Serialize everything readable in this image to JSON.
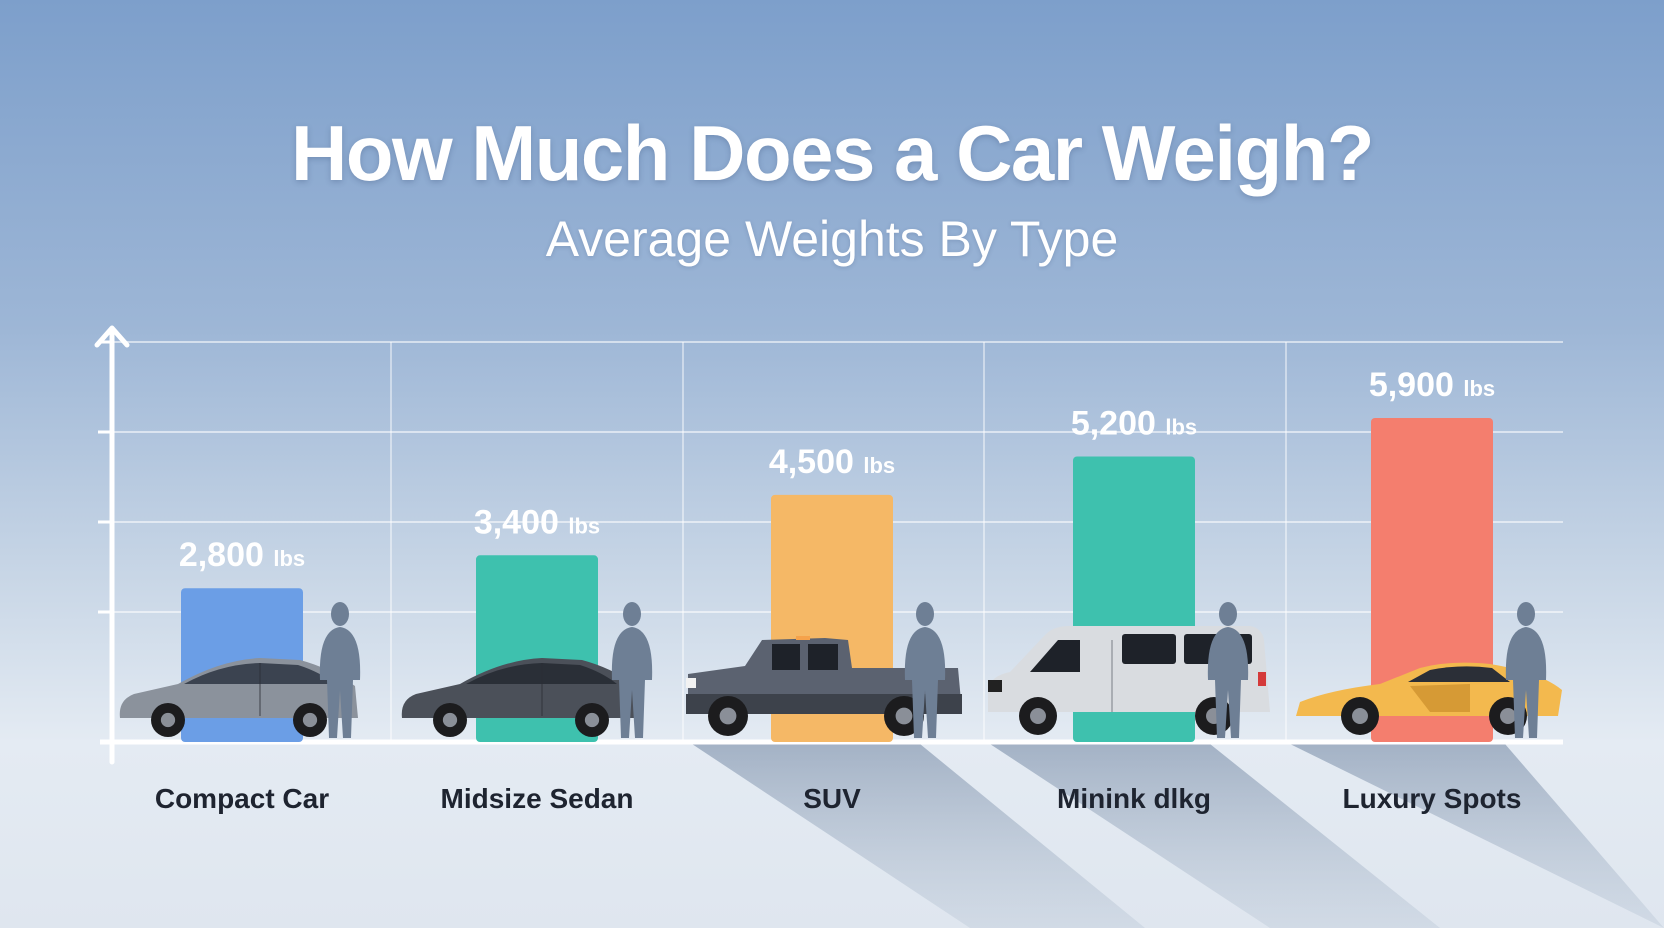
{
  "title": "How Much Does a Car Weigh?",
  "subtitle": "Average Weights By Type",
  "chart_data": {
    "type": "bar",
    "title": "How Much Does a Car Weigh?",
    "subtitle": "Average Weights By Type",
    "categories": [
      "Compact Car",
      "Midsize Sedan",
      "SUV",
      "Minink dlkg",
      "Luxury Spots"
    ],
    "values": [
      2800,
      3400,
      4500,
      5200,
      5900
    ],
    "value_labels": [
      "2,800",
      "3,400",
      "4,500",
      "5,200",
      "5,900"
    ],
    "unit": "lbs",
    "colors": [
      "#6b9ee6",
      "#3ec1ae",
      "#f5b866",
      "#3ec1ae",
      "#f47e6e"
    ],
    "icons": [
      "compact-car-icon",
      "sedan-icon",
      "pickup-truck-icon",
      "minivan-icon",
      "sports-car-icon"
    ],
    "ylim": [
      0,
      6000
    ],
    "grid": true,
    "legend": "none"
  }
}
